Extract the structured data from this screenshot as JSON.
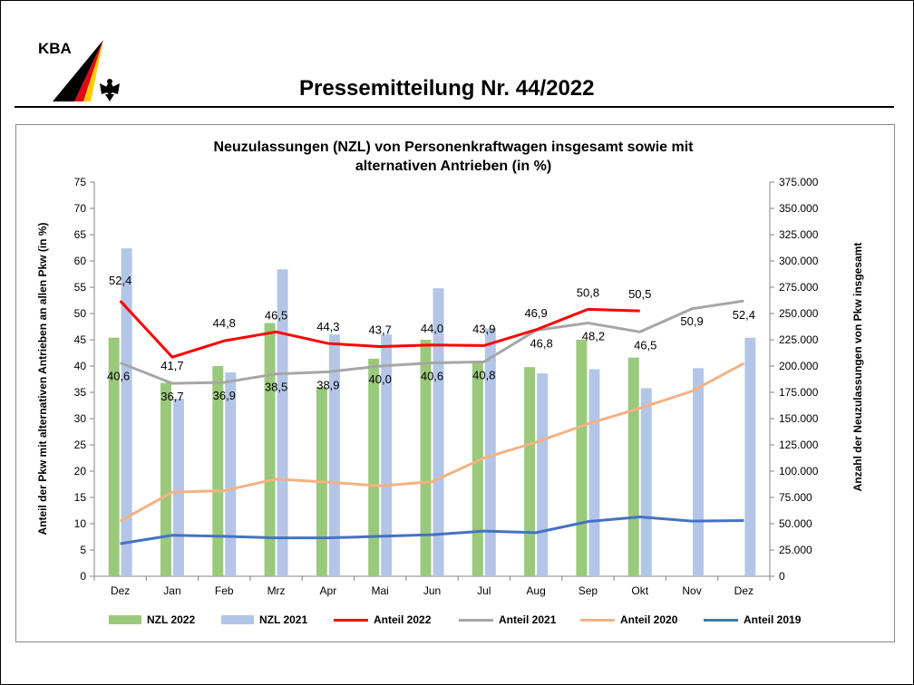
{
  "header": {
    "logo_text": "KBA",
    "title": "Pressemitteilung Nr. 44/2022"
  },
  "chart_data": {
    "type": "bar",
    "title": "Neuzulassungen (NZL) von Personenkraftwagen insgesamt sowie mit alternativen Antrieben (in %)",
    "title_lines": [
      "Neuzulassungen (NZL) von Personenkraftwagen insgesamt sowie mit",
      "alternativen Antrieben (in %)"
    ],
    "ylabel_left": "Anteil der Pkw mit alternativen Antrieben an allen Pkw (in %)",
    "ylabel_right": "Anzahl der Neuzulassungen von Pkw insgesamt",
    "categories": [
      "Dez",
      "Jan",
      "Feb",
      "Mrz",
      "Apr",
      "Mai",
      "Jun",
      "Jul",
      "Aug",
      "Sep",
      "Okt",
      "Nov",
      "Dez"
    ],
    "ylim_left": [
      0,
      75
    ],
    "ylim_right": [
      0,
      375000
    ],
    "yticks_left": [
      "0",
      "5",
      "10",
      "15",
      "20",
      "25",
      "30",
      "35",
      "40",
      "45",
      "50",
      "55",
      "60",
      "65",
      "70",
      "75"
    ],
    "yticks_right": [
      "0",
      "25.000",
      "50.000",
      "75.000",
      "100.000",
      "125.000",
      "150.000",
      "175.000",
      "200.000",
      "225.000",
      "250.000",
      "275.000",
      "300.000",
      "325.000",
      "350.000",
      "375.000"
    ],
    "grid": false,
    "legend_position": "bottom",
    "bar_series": [
      {
        "name": "NZL 2022",
        "color": "#9bc97b",
        "axis": "right",
        "values": [
          227000,
          184000,
          200000,
          241000,
          180000,
          207000,
          225000,
          205000,
          199000,
          225000,
          208000,
          null,
          null
        ]
      },
      {
        "name": "NZL 2021",
        "color": "#b4c6e7",
        "axis": "right",
        "values": [
          312000,
          169000,
          194000,
          292000,
          230000,
          230000,
          274000,
          236000,
          193000,
          197000,
          179000,
          198000,
          227000
        ]
      }
    ],
    "line_series": [
      {
        "name": "Anteil 2022",
        "color": "#ff0000",
        "axis": "left",
        "values": [
          52.4,
          41.7,
          44.8,
          46.5,
          44.3,
          43.7,
          44.0,
          43.9,
          46.9,
          50.8,
          50.5,
          null,
          null
        ],
        "labels": [
          "52,4",
          "41,7",
          "44,8",
          "46,5",
          "44,3",
          "43,7",
          "44,0",
          "43,9",
          "46,9",
          "50,8",
          "50,5",
          "",
          ""
        ]
      },
      {
        "name": "Anteil 2021",
        "color": "#a6a6a6",
        "axis": "left",
        "values": [
          40.6,
          36.7,
          36.9,
          38.5,
          38.9,
          40.0,
          40.6,
          40.8,
          46.8,
          48.2,
          46.5,
          50.9,
          52.4
        ],
        "labels": [
          "40,6",
          "36,7",
          "36,9",
          "38,5",
          "38,9",
          "40,0",
          "40,6",
          "40,8",
          "46,8",
          "48,2",
          "46,5",
          "50,9",
          "52,4"
        ]
      },
      {
        "name": "Anteil 2020",
        "color": "#f4b183",
        "axis": "left",
        "values": [
          10.5,
          16.0,
          16.3,
          18.5,
          17.9,
          17.2,
          18.0,
          22.5,
          25.5,
          29.0,
          32.0,
          35.2,
          40.5
        ]
      },
      {
        "name": "Anteil 2019",
        "color": "#4472c4",
        "axis": "left",
        "values": [
          6.2,
          7.8,
          7.6,
          7.3,
          7.3,
          7.6,
          7.9,
          8.6,
          8.3,
          10.4,
          11.3,
          10.5,
          10.6
        ]
      }
    ],
    "legend": [
      "NZL 2022",
      "NZL 2021",
      "Anteil 2022",
      "Anteil 2021",
      "Anteil 2020",
      "Anteil 2019"
    ]
  }
}
